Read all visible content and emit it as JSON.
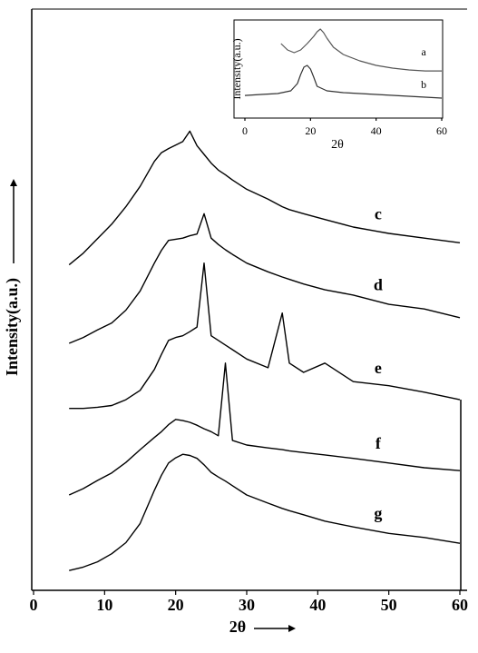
{
  "chart_data": [
    {
      "type": "line",
      "x_label": "2θ",
      "y_label": "Intensity(a.u.)",
      "xlim": [
        0,
        60
      ],
      "xticks": [
        0,
        10,
        20,
        30,
        40,
        50,
        60
      ],
      "ylim": [
        0,
        100
      ],
      "x": [
        5,
        7,
        9,
        11,
        13,
        15,
        17,
        18,
        19,
        20,
        21,
        22,
        23,
        24,
        25,
        26,
        27,
        28,
        30,
        33,
        35,
        36,
        38,
        41,
        45,
        50,
        55,
        60
      ],
      "series": [
        {
          "name": "c",
          "color": "#000000",
          "values": [
            56,
            58,
            60.5,
            63,
            66,
            69.5,
            73.8,
            75.3,
            76,
            76.6,
            77.2,
            79,
            76.5,
            75,
            73.5,
            72.3,
            71.5,
            70.6,
            69,
            67.3,
            66,
            65.5,
            64.8,
            63.8,
            62.5,
            61.4,
            60.6,
            59.8
          ]
        },
        {
          "name": "d",
          "color": "#000000",
          "values": [
            42.5,
            43.5,
            44.8,
            46,
            48.2,
            51.5,
            56.3,
            58.5,
            60.2,
            60.4,
            60.6,
            61,
            61.3,
            64.8,
            60.6,
            59.5,
            58.6,
            57.8,
            56.3,
            54.8,
            53.9,
            53.5,
            52.7,
            51.7,
            50.8,
            49.2,
            48.4,
            46.9
          ]
        },
        {
          "name": "e",
          "color": "#000000",
          "values": [
            31.3,
            31.3,
            31.5,
            31.8,
            32.8,
            34.4,
            38,
            40.6,
            43,
            43.5,
            43.8,
            44.5,
            45.3,
            56.3,
            43.8,
            43,
            42.2,
            41.4,
            39.8,
            38.3,
            47.7,
            39.1,
            37.5,
            39.1,
            35.9,
            35.2,
            34.1,
            32.8
          ]
        },
        {
          "name": "f",
          "color": "#000000",
          "values": [
            16.4,
            17.5,
            18.9,
            20.2,
            22,
            24.2,
            26.3,
            27.3,
            28.5,
            29.4,
            29.2,
            28.9,
            28.4,
            27.8,
            27.3,
            26.6,
            39.1,
            25.8,
            25,
            24.5,
            24.2,
            24,
            23.7,
            23.3,
            22.7,
            21.9,
            21.1,
            20.6
          ]
        },
        {
          "name": "g",
          "color": "#000000",
          "values": [
            3.4,
            4,
            4.9,
            6.3,
            8.2,
            11.5,
            17.2,
            19.8,
            21.9,
            22.8,
            23.4,
            23.2,
            22.7,
            21.6,
            20.3,
            19.5,
            18.8,
            18,
            16.4,
            15,
            14.1,
            13.7,
            13,
            11.9,
            10.9,
            9.8,
            9.1,
            8.1
          ]
        }
      ]
    },
    {
      "type": "line",
      "x_label": "2θ",
      "y_label": "Intensity(a.u.)",
      "xlim": [
        0,
        60
      ],
      "xticks": [
        0,
        20,
        40,
        60
      ],
      "ylim": [
        0,
        100
      ],
      "series": [
        {
          "name": "a",
          "color": "#555555",
          "x": [
            11,
            13,
            15,
            17,
            19,
            21,
            22,
            23,
            24,
            25,
            27,
            30,
            35,
            40,
            45,
            50,
            55,
            60
          ],
          "values": [
            75.9,
            69.4,
            66.7,
            69.4,
            75.9,
            83.3,
            88,
            90.7,
            87,
            81.5,
            72.2,
            64.8,
            58.3,
            53.7,
            50.9,
            49.1,
            48.1,
            48.1
          ]
        },
        {
          "name": "b",
          "color": "#333333",
          "x": [
            0,
            5,
            10,
            14,
            16,
            17,
            18,
            19,
            20,
            21,
            22,
            25,
            30,
            40,
            50,
            60
          ],
          "values": [
            23.1,
            24.1,
            25,
            27.8,
            35.2,
            44.4,
            51.9,
            53.7,
            50,
            41.7,
            32.4,
            27.8,
            25.9,
            24.1,
            22.2,
            20.4
          ]
        }
      ]
    }
  ]
}
